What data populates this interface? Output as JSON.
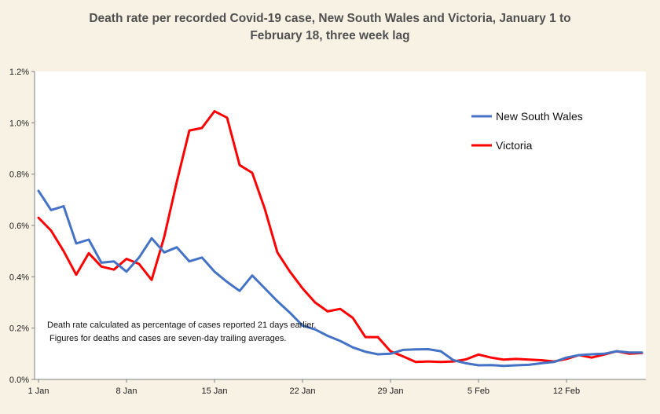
{
  "chart_data": {
    "type": "line",
    "title_lines": [
      "Death rate per recorded Covid-19 case, New South Wales and Victoria, January 1 to",
      "February 18, three week lag"
    ],
    "x": [
      "1 Jan",
      "2 Jan",
      "3 Jan",
      "4 Jan",
      "5 Jan",
      "6 Jan",
      "7 Jan",
      "8 Jan",
      "9 Jan",
      "10 Jan",
      "11 Jan",
      "12 Jan",
      "13 Jan",
      "14 Jan",
      "15 Jan",
      "16 Jan",
      "17 Jan",
      "18 Jan",
      "19 Jan",
      "20 Jan",
      "21 Jan",
      "22 Jan",
      "23 Jan",
      "24 Jan",
      "25 Jan",
      "26 Jan",
      "27 Jan",
      "28 Jan",
      "29 Jan",
      "30 Jan",
      "31 Jan",
      "1 Feb",
      "2 Feb",
      "3 Feb",
      "4 Feb",
      "5 Feb",
      "6 Feb",
      "7 Feb",
      "8 Feb",
      "9 Feb",
      "10 Feb",
      "11 Feb",
      "12 Feb",
      "13 Feb",
      "14 Feb",
      "15 Feb",
      "16 Feb",
      "17 Feb",
      "18 Feb"
    ],
    "x_tick_labels": [
      "1 Jan",
      "8 Jan",
      "15 Jan",
      "22 Jan",
      "29 Jan",
      "5 Feb",
      "12 Feb"
    ],
    "x_tick_index": [
      0,
      7,
      14,
      21,
      28,
      35,
      42
    ],
    "y_ticks": [
      0,
      0.2,
      0.4,
      0.6,
      0.8,
      1.0,
      1.2
    ],
    "y_tick_labels": [
      "0.0%",
      "0.2%",
      "0.4%",
      "0.6%",
      "0.8%",
      "1.0%",
      "1.2%"
    ],
    "ylim": [
      0,
      1.2
    ],
    "y_unit": "%",
    "grid": false,
    "legend_position": "top-right",
    "series": [
      {
        "name": "New South Wales",
        "color": "#4472c4",
        "values": [
          0.735,
          0.66,
          0.675,
          0.53,
          0.545,
          0.455,
          0.46,
          0.42,
          0.475,
          0.55,
          0.495,
          0.515,
          0.46,
          0.475,
          0.42,
          0.38,
          0.345,
          0.405,
          0.355,
          0.305,
          0.26,
          0.21,
          0.195,
          0.17,
          0.15,
          0.125,
          0.108,
          0.098,
          0.1,
          0.115,
          0.117,
          0.118,
          0.11,
          0.075,
          0.063,
          0.055,
          0.056,
          0.053,
          0.055,
          0.057,
          0.063,
          0.068,
          0.085,
          0.095,
          0.098,
          0.1,
          0.11,
          0.105,
          0.105
        ]
      },
      {
        "name": "Victoria",
        "color": "#ff0000",
        "values": [
          0.63,
          0.58,
          0.5,
          0.408,
          0.492,
          0.44,
          0.428,
          0.47,
          0.45,
          0.388,
          0.555,
          0.77,
          0.97,
          0.98,
          1.045,
          1.02,
          0.835,
          0.805,
          0.665,
          0.495,
          0.42,
          0.355,
          0.3,
          0.265,
          0.275,
          0.24,
          0.165,
          0.165,
          0.11,
          0.09,
          0.068,
          0.07,
          0.068,
          0.07,
          0.078,
          0.097,
          0.085,
          0.077,
          0.08,
          0.077,
          0.075,
          0.07,
          0.08,
          0.095,
          0.085,
          0.097,
          0.11,
          0.1,
          0.103
        ]
      }
    ],
    "annotation_lines": [
      "Death rate calculated as percentage of cases reported 21 days earlier.",
      "Figures for deaths and cases are seven-day trailing averages."
    ]
  }
}
